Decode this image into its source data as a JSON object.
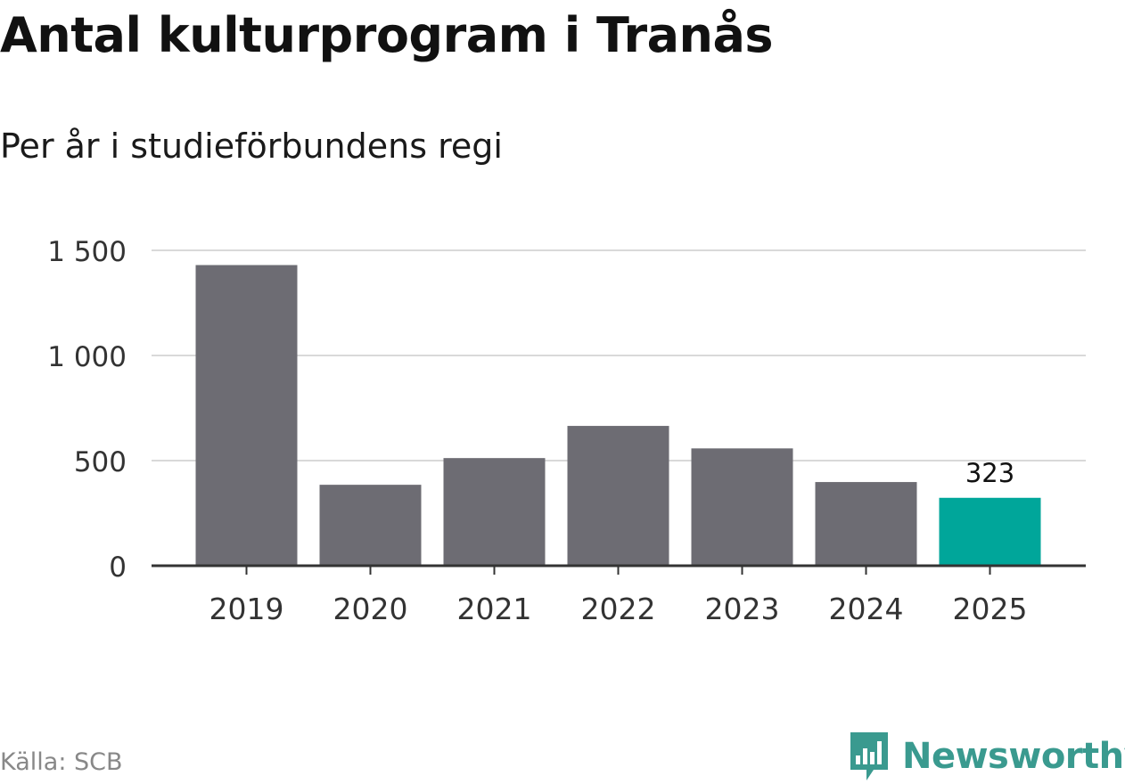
{
  "title": "Antal kulturprogram i Tranås",
  "subtitle": "Per år i studieförbundens regi",
  "source": "Källa: SCB",
  "brand": {
    "name": "Newsworthy",
    "icon": "bar-chart-speech-bubble-icon",
    "color": "#3a9a8f"
  },
  "chart_data": {
    "type": "bar",
    "categories": [
      "2019",
      "2020",
      "2021",
      "2022",
      "2023",
      "2024",
      "2025"
    ],
    "values": [
      1430,
      385,
      512,
      665,
      558,
      398,
      323
    ],
    "ylim": [
      0,
      1500
    ],
    "yticks": [
      0,
      500,
      1000,
      1500
    ],
    "ytick_labels": [
      "0",
      "500",
      "1 000",
      "1 500"
    ],
    "grid": true,
    "colors": {
      "default": "#6d6c73",
      "highlight": "#00a69a",
      "grid": "#d9d9d9",
      "axis": "#333333"
    },
    "highlight_index": 6,
    "data_labels": [
      {
        "index": 6,
        "text": "323"
      }
    ]
  }
}
